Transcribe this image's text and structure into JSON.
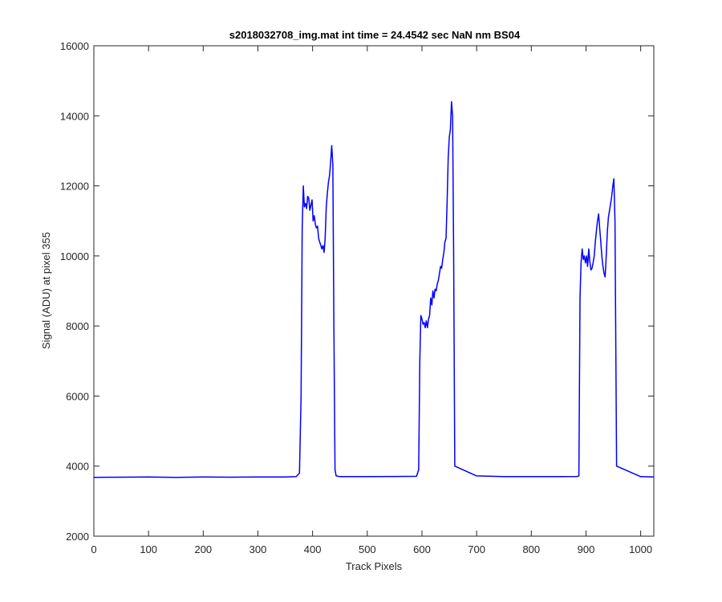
{
  "chart_data": {
    "type": "line",
    "title": "s2018032708_img.mat int time = 24.4542 sec  NaN nm BS04",
    "xlabel": "Track Pixels",
    "ylabel": "Signal (ADU) at pixel 355",
    "xlim": [
      0,
      1024
    ],
    "ylim": [
      2000,
      16000
    ],
    "xticks": [
      0,
      100,
      200,
      300,
      400,
      500,
      600,
      700,
      800,
      900,
      1000
    ],
    "yticks": [
      2000,
      4000,
      6000,
      8000,
      10000,
      12000,
      14000,
      16000
    ],
    "grid": false,
    "line_color": "#0000ff",
    "series": [
      {
        "x": [
          0,
          50,
          100,
          150,
          200,
          250,
          300,
          350,
          370,
          376,
          379,
          381,
          383,
          385,
          387,
          389,
          391,
          393,
          395,
          397,
          399,
          401,
          403,
          405,
          407,
          409,
          411,
          413,
          415,
          417,
          419,
          421,
          423,
          425,
          427,
          429,
          431,
          433,
          435,
          437,
          439,
          441,
          443,
          450,
          500,
          550,
          590,
          594,
          596,
          598,
          600,
          602,
          604,
          606,
          608,
          610,
          612,
          614,
          616,
          618,
          620,
          622,
          624,
          626,
          628,
          630,
          632,
          634,
          636,
          638,
          640,
          642,
          644,
          646,
          648,
          650,
          652,
          654,
          656,
          658,
          660,
          700,
          750,
          800,
          850,
          884,
          887,
          889,
          891,
          893,
          895,
          897,
          899,
          901,
          903,
          905,
          907,
          909,
          911,
          913,
          915,
          917,
          919,
          921,
          923,
          925,
          927,
          929,
          931,
          933,
          935,
          937,
          939,
          941,
          943,
          945,
          947,
          949,
          951,
          953,
          956,
          1000,
          1024
        ],
        "values": [
          3680,
          3685,
          3690,
          3680,
          3690,
          3685,
          3690,
          3690,
          3700,
          3800,
          6000,
          10800,
          12000,
          11400,
          11500,
          11350,
          11700,
          11650,
          11300,
          11450,
          11600,
          11000,
          11150,
          10900,
          10800,
          10850,
          10500,
          10400,
          10300,
          10200,
          10300,
          10100,
          10500,
          11400,
          11800,
          12100,
          12300,
          12700,
          13150,
          12600,
          8000,
          3900,
          3720,
          3700,
          3700,
          3705,
          3710,
          3900,
          7000,
          8300,
          8200,
          8050,
          8100,
          7950,
          8150,
          7950,
          8200,
          8300,
          8800,
          8600,
          9000,
          8800,
          9050,
          9000,
          9200,
          9300,
          9500,
          9700,
          9650,
          9900,
          10100,
          10400,
          10500,
          11500,
          12800,
          13400,
          13600,
          14400,
          14000,
          10000,
          4000,
          3720,
          3700,
          3700,
          3700,
          3705,
          3720,
          8800,
          9800,
          10200,
          9900,
          10000,
          9800,
          10000,
          9700,
          10200,
          9850,
          9600,
          9650,
          9800,
          10000,
          10400,
          10700,
          11000,
          11200,
          10800,
          10400,
          10000,
          9700,
          9500,
          9400,
          10000,
          10700,
          11100,
          11300,
          11500,
          11700,
          12000,
          12200,
          11000,
          4000,
          3700,
          3690
        ]
      }
    ]
  }
}
